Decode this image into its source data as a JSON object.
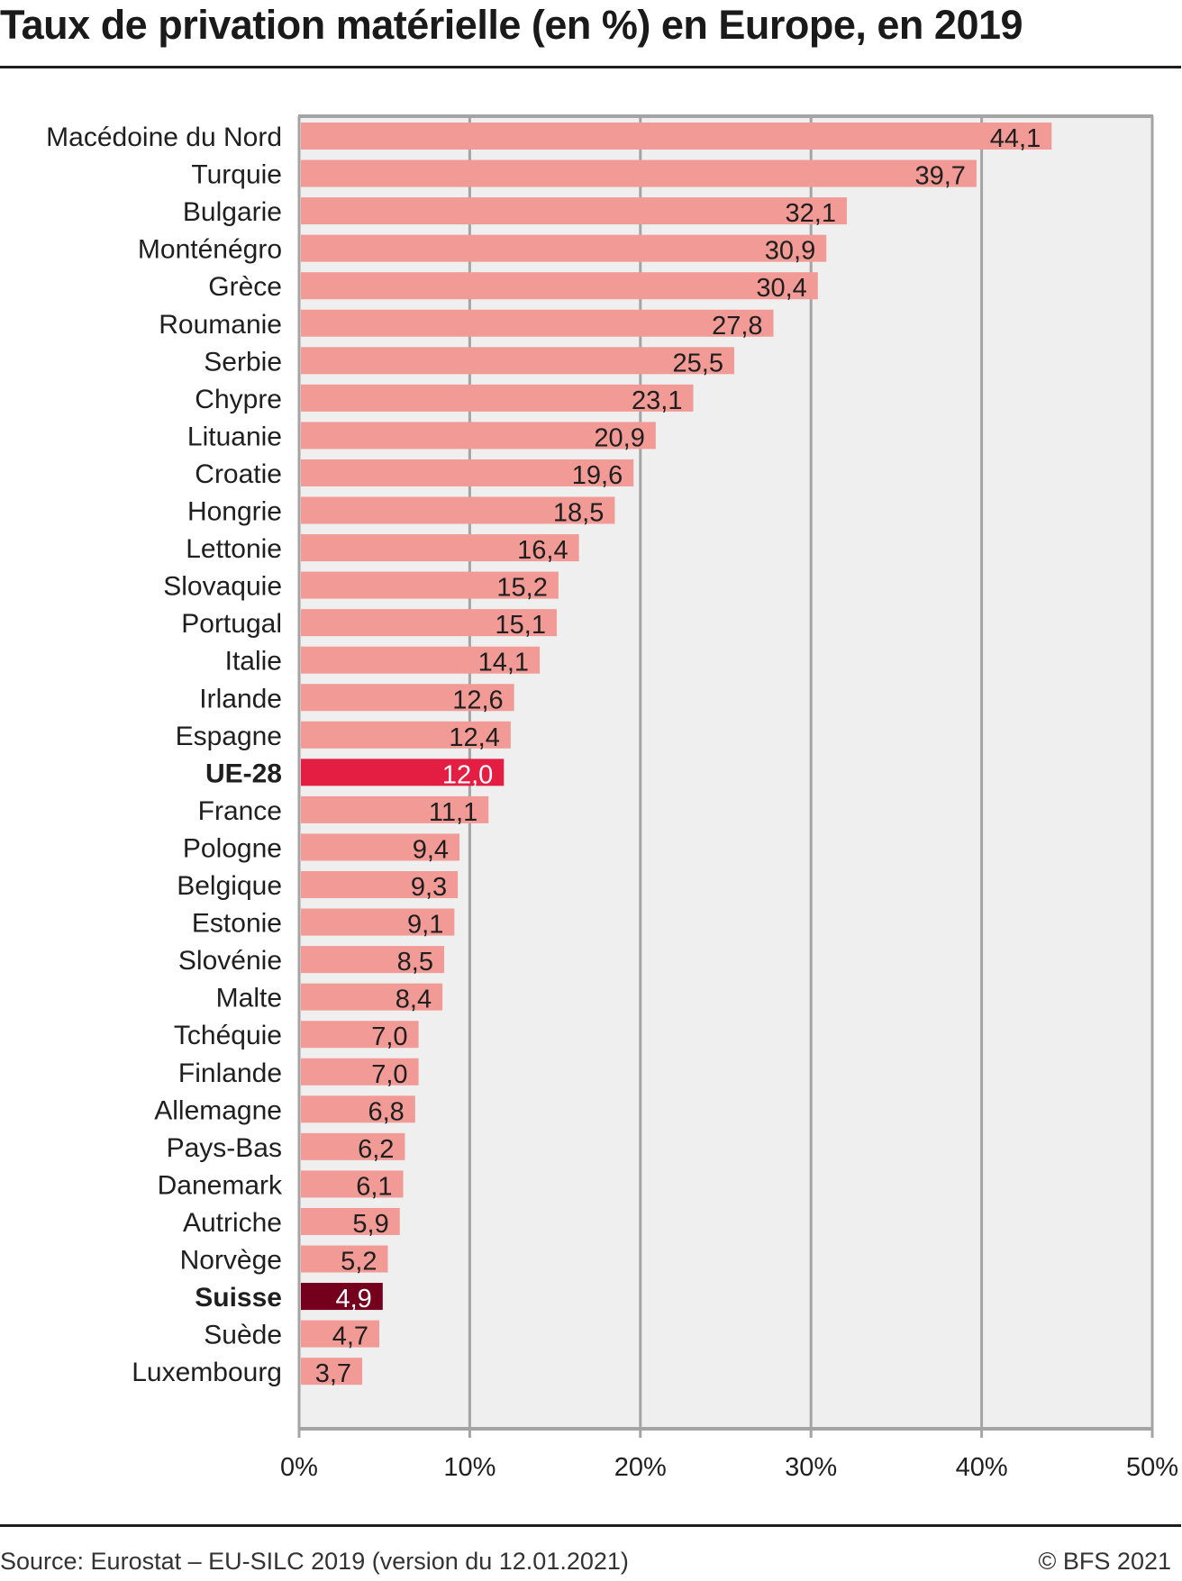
{
  "title": "Taux de privation matérielle (en %) en Europe, en 2019",
  "footer": {
    "source": "Source: Eurostat – EU-SILC 2019 (version  du 12.01.2021)",
    "copyright": "© BFS 2021"
  },
  "colors": {
    "default_bar": "#f29a95",
    "eu_bar": "#e31e42",
    "swiss_bar": "#74001e",
    "plot_bg": "#efefef",
    "grid": "#a4a4a4"
  },
  "chart_data": {
    "type": "bar",
    "orientation": "horizontal",
    "title": "Taux de privation matérielle (en %) en Europe, en 2019",
    "xlabel": "",
    "ylabel": "",
    "xlim": [
      0,
      50
    ],
    "grid": true,
    "x_ticks": [
      0,
      10,
      20,
      30,
      40,
      50
    ],
    "x_tick_labels": [
      "0%",
      "10%",
      "20%",
      "30%",
      "40%",
      "50%"
    ],
    "categories": [
      "Macédoine du Nord",
      "Turquie",
      "Bulgarie",
      "Monténégro",
      "Grèce",
      "Roumanie",
      "Serbie",
      "Chypre",
      "Lituanie",
      "Croatie",
      "Hongrie",
      "Lettonie",
      "Slovaquie",
      "Portugal",
      "Italie",
      "Irlande",
      "Espagne",
      "UE-28",
      "France",
      "Pologne",
      "Belgique",
      "Estonie",
      "Slovénie",
      "Malte",
      "Tchéquie",
      "Finlande",
      "Allemagne",
      "Pays-Bas",
      "Danemark",
      "Autriche",
      "Norvège",
      "Suisse",
      "Suède",
      "Luxembourg"
    ],
    "values": [
      44.1,
      39.7,
      32.1,
      30.9,
      30.4,
      27.8,
      25.5,
      23.1,
      20.9,
      19.6,
      18.5,
      16.4,
      15.2,
      15.1,
      14.1,
      12.6,
      12.4,
      12.0,
      11.1,
      9.4,
      9.3,
      9.1,
      8.5,
      8.4,
      7.0,
      7.0,
      6.8,
      6.2,
      6.1,
      5.9,
      5.2,
      4.9,
      4.7,
      3.7
    ],
    "value_labels": [
      "44,1",
      "39,7",
      "32,1",
      "30,9",
      "30,4",
      "27,8",
      "25,5",
      "23,1",
      "20,9",
      "19,6",
      "18,5",
      "16,4",
      "15,2",
      "15,1",
      "14,1",
      "12,6",
      "12,4",
      "12,0",
      "11,1",
      "9,4",
      "9,3",
      "9,1",
      "8,5",
      "8,4",
      "7,0",
      "7,0",
      "6,8",
      "6,2",
      "6,1",
      "5,9",
      "5,2",
      "4,9",
      "4,7",
      "3,7"
    ],
    "highlight": {
      "UE-28": "eu",
      "Suisse": "swiss"
    }
  }
}
